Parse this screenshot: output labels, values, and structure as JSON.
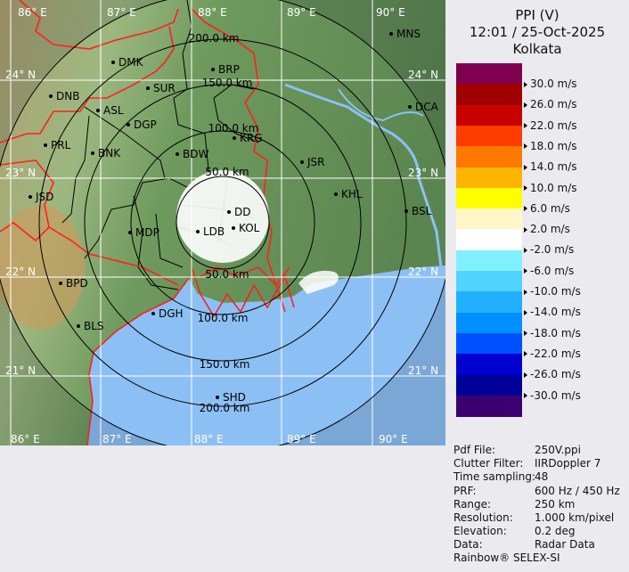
{
  "header": {
    "product": "PPI (V)",
    "datetime": "12:01 / 25-Oct-2025",
    "station": "Kolkata"
  },
  "legend": {
    "colors": [
      "#800050",
      "#a00000",
      "#c80000",
      "#ff3c00",
      "#ff7800",
      "#ffb400",
      "#ffff00",
      "#fff6c8",
      "#ffffff",
      "#80f0ff",
      "#50d4ff",
      "#20b0ff",
      "#0090ff",
      "#0050ff",
      "#0000d0",
      "#000098",
      "#3c0070"
    ],
    "labels": [
      "30.0 m/s",
      "26.0 m/s",
      "22.0 m/s",
      "18.0 m/s",
      "14.0 m/s",
      "10.0 m/s",
      "6.0 m/s",
      "2.0 m/s",
      "-2.0 m/s",
      "-6.0 m/s",
      "-10.0 m/s",
      "-14.0 m/s",
      "-18.0 m/s",
      "-22.0 m/s",
      "-26.0 m/s",
      "-30.0 m/s"
    ]
  },
  "map": {
    "longitudes": [
      "86° E",
      "87° E",
      "88° E",
      "89° E",
      "90° E"
    ],
    "latitudes": [
      "24° N",
      "23° N",
      "22° N",
      "21° N"
    ],
    "range_rings": [
      "50.0 km",
      "100.0 km",
      "150.0 km",
      "200.0 km"
    ],
    "cities": [
      "MNS",
      "DMK",
      "BRP",
      "SUR",
      "DNB",
      "ASL",
      "DGP",
      "DCA",
      "KRG",
      "PRL",
      "BNK",
      "BDW",
      "JSR",
      "JSD",
      "KHL",
      "BSL",
      "DD",
      "KOL",
      "LDB",
      "MDP",
      "BPD",
      "BLS",
      "DGH",
      "SHD"
    ],
    "colors": {
      "land": "#5f8c55",
      "sea": "#8cc0f4",
      "border_international": "#ff2020",
      "border_district": "#000000",
      "grid": "#ffffff"
    }
  },
  "info": {
    "rows": [
      {
        "key": "Pdf File:",
        "value": "250V.ppi"
      },
      {
        "key": "Clutter Filter:",
        "value": "IIRDoppler 7"
      },
      {
        "key": "Time sampling:",
        "value": "48"
      },
      {
        "key": "PRF:",
        "value": "600 Hz / 450 Hz"
      },
      {
        "key": "Range:",
        "value": "250 km"
      },
      {
        "key": "Resolution:",
        "value": "1.000 km/pixel"
      },
      {
        "key": "Elevation:",
        "value": "0.2 deg"
      },
      {
        "key": "Data:",
        "value": "Radar Data"
      }
    ],
    "footer": "Rainbow® SELEX-SI"
  }
}
